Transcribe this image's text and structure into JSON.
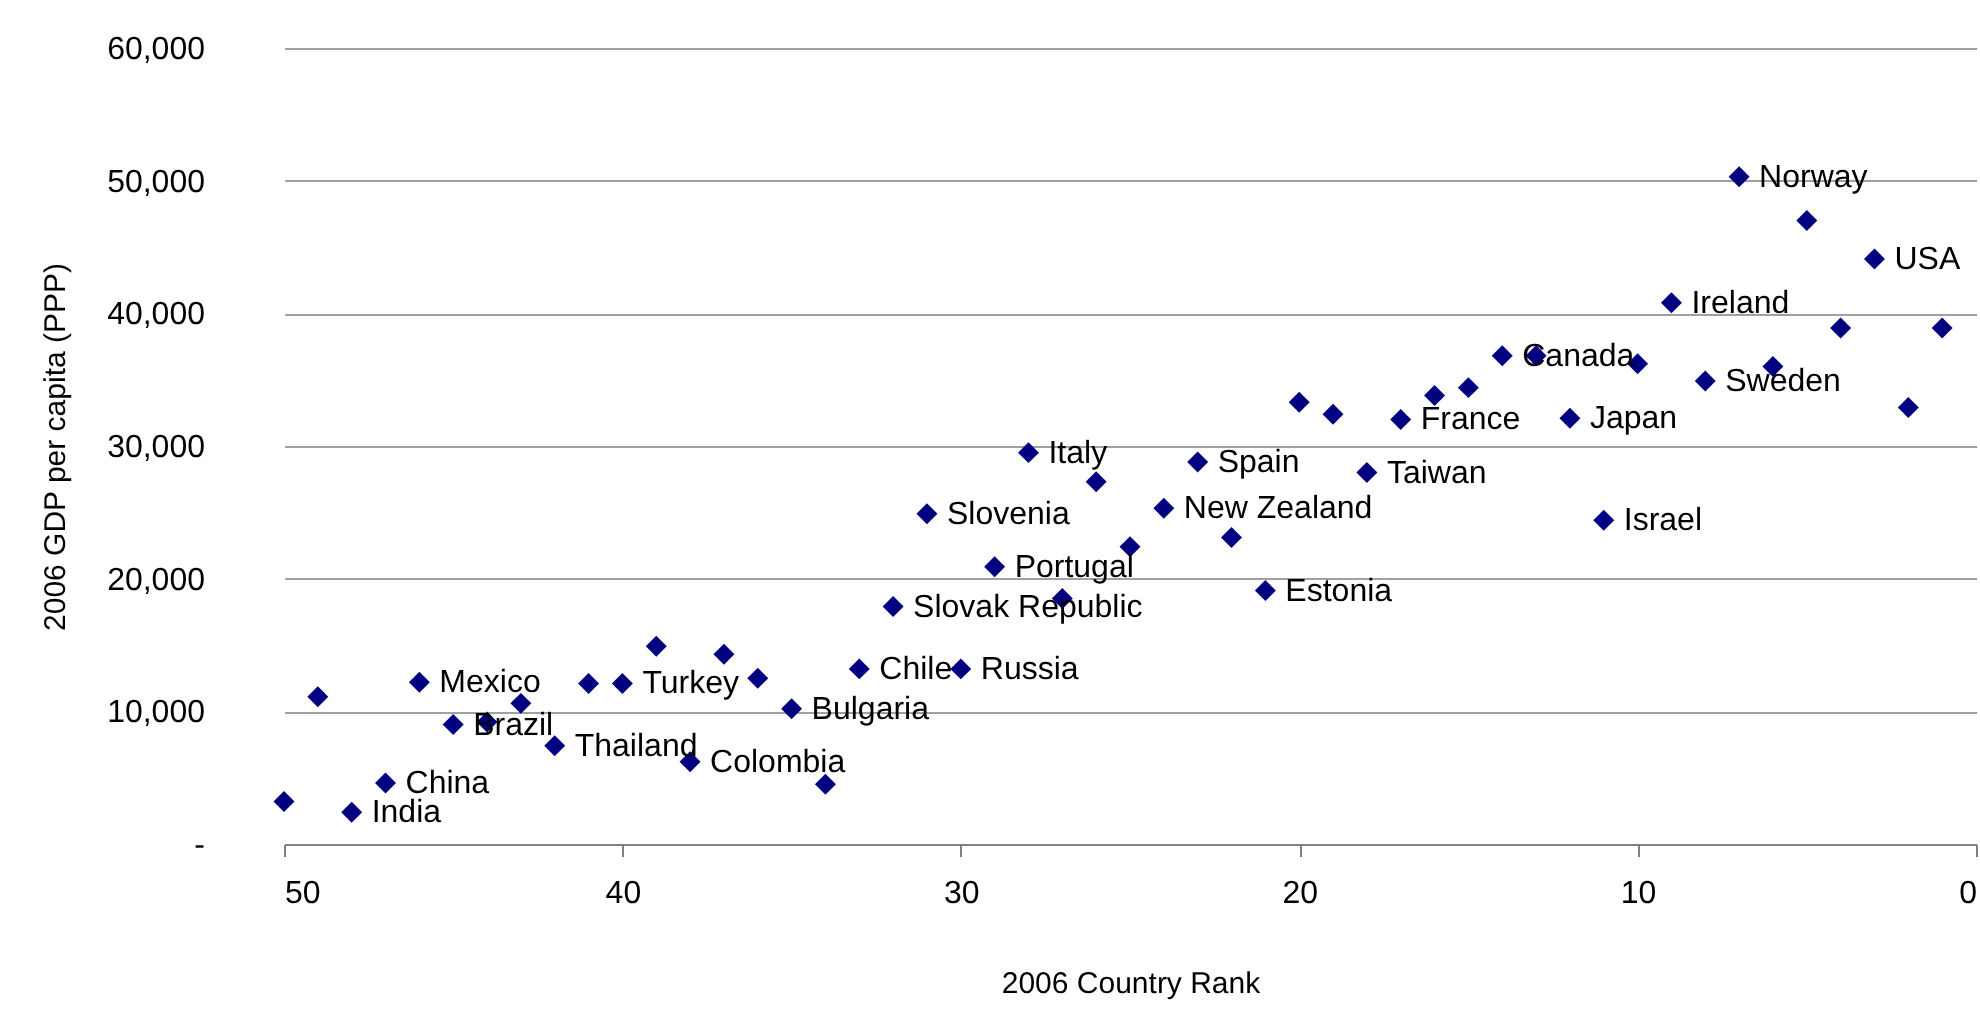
{
  "chart_data": {
    "type": "scatter",
    "xlabel": "2006 Country Rank",
    "ylabel": "2006 GDP per capita (PPP)",
    "x": [
      1,
      2,
      3,
      4,
      5,
      6,
      7,
      8,
      9,
      10,
      11,
      12,
      13,
      14,
      15,
      16,
      17,
      18,
      19,
      20,
      21,
      22,
      23,
      24,
      25,
      26,
      27,
      28,
      29,
      30,
      31,
      32,
      33,
      34,
      35,
      36,
      37,
      38,
      39,
      40,
      41,
      42,
      43,
      44,
      45,
      46,
      47,
      48,
      49,
      50
    ],
    "series": [
      {
        "color": "#000080",
        "values": [
          38900,
          32900,
          44100,
          38900,
          47000,
          36000,
          50300,
          34900,
          40800,
          36200,
          24400,
          32100,
          36800,
          36800,
          34400,
          33800,
          32000,
          28000,
          32400,
          33300,
          19100,
          23100,
          28800,
          25300,
          22400,
          27300,
          18500,
          29500,
          20900,
          13200,
          24900,
          17900,
          13200,
          4500,
          10200,
          12500,
          14300,
          6200,
          14900,
          12100,
          12100,
          7400,
          10600,
          9200,
          9000,
          12200,
          4600,
          2400,
          11100,
          3200
        ],
        "value_labels": [
          null,
          null,
          "USA",
          null,
          null,
          null,
          "Norway",
          "Sweden",
          "Ireland",
          null,
          "Israel",
          "Japan",
          null,
          "Canada",
          null,
          null,
          "France",
          "Taiwan",
          null,
          null,
          "Estonia",
          null,
          "Spain",
          "New Zealand",
          null,
          null,
          null,
          "Italy",
          "Portugal",
          "Russia",
          "Slovenia",
          "Slovak Republic",
          "Chile",
          null,
          "Bulgaria",
          null,
          null,
          "Colombia",
          null,
          "Turkey",
          null,
          "Thailand",
          null,
          null,
          "Brazil",
          "Mexico",
          "China",
          "India",
          null,
          null
        ]
      }
    ],
    "xlim": [
      50,
      0
    ],
    "xticks": [
      50,
      40,
      30,
      20,
      10,
      0
    ],
    "ylim": [
      0,
      60000
    ],
    "yticks": [
      {
        "value": 0,
        "label": "-"
      },
      {
        "value": 10000,
        "label": "10,000"
      },
      {
        "value": 20000,
        "label": "20,000"
      },
      {
        "value": 30000,
        "label": "30,000"
      },
      {
        "value": 40000,
        "label": "40,000"
      },
      {
        "value": 50000,
        "label": "50,000"
      },
      {
        "value": 60000,
        "label": "60,000"
      }
    ],
    "grid": "y",
    "marker": "diamond"
  }
}
